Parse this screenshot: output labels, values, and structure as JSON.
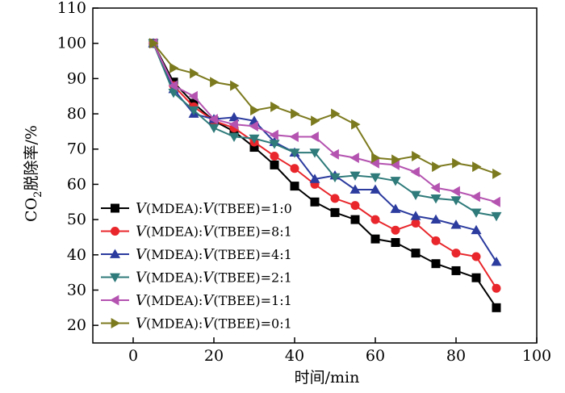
{
  "chart_data": {
    "type": "line",
    "xlabel": "时间/min",
    "ylabel_main": "CO",
    "ylabel_sub": "2",
    "ylabel_rest": "脱除率/%",
    "xlim": [
      -10,
      100
    ],
    "ylim": [
      15,
      110
    ],
    "xticks": [
      0,
      20,
      40,
      60,
      80,
      100
    ],
    "yticks": [
      20,
      30,
      40,
      50,
      60,
      70,
      80,
      90,
      100,
      110
    ],
    "xtick_labels": [
      "0",
      "20",
      "40",
      "60",
      "80",
      "100"
    ],
    "ytick_labels": [
      "20",
      "30",
      "40",
      "50",
      "60",
      "70",
      "80",
      "90",
      "100",
      "110"
    ],
    "grid": false,
    "legend_position": "bottom-left",
    "x": [
      5,
      10,
      15,
      20,
      25,
      30,
      35,
      40,
      45,
      50,
      55,
      60,
      65,
      70,
      75,
      80,
      85,
      90
    ],
    "series": [
      {
        "name": "V(MDEA):V(TBEE)=1:0",
        "legend_v1": "V",
        "legend_mid": "(MDEA):",
        "legend_v2": "V",
        "legend_end": "(TBEE)=1:0",
        "color": "#000000",
        "marker": "square",
        "values": [
          100,
          89,
          83,
          78,
          75,
          70.5,
          65.5,
          59.5,
          55,
          52,
          50,
          44.5,
          43.5,
          40.5,
          37.5,
          35.5,
          33.5,
          25
        ]
      },
      {
        "name": "V(MDEA):V(TBEE)=8:1",
        "legend_v1": "V",
        "legend_mid": "(MDEA):",
        "legend_v2": "V",
        "legend_end": "(TBEE)=8:1",
        "color": "#e8262b",
        "marker": "circle",
        "values": [
          100,
          88,
          82,
          78,
          76,
          72,
          68,
          64.5,
          60,
          56,
          54,
          50,
          47,
          49,
          44,
          40.5,
          39.5,
          30.5
        ]
      },
      {
        "name": "V(MDEA):V(TBEE)=4:1",
        "legend_v1": "V",
        "legend_mid": "(MDEA):",
        "legend_v2": "V",
        "legend_end": "(TBEE)=4:1",
        "color": "#2b3b9e",
        "marker": "triangle-up",
        "values": [
          100,
          87,
          80,
          78.5,
          79,
          78,
          72,
          69,
          61.5,
          62.5,
          58.5,
          58.5,
          53,
          51,
          50,
          48.5,
          47,
          38
        ]
      },
      {
        "name": "V(MDEA):V(TBEE)=2:1",
        "legend_v1": "V",
        "legend_mid": "(MDEA):",
        "legend_v2": "V",
        "legend_end": "(TBEE)=2:1",
        "color": "#2f7a7a",
        "marker": "triangle-down",
        "values": [
          100,
          86,
          81,
          76,
          73.5,
          73,
          71.5,
          69,
          69,
          62,
          62.5,
          62,
          61,
          57,
          56,
          55.5,
          52,
          51
        ]
      },
      {
        "name": "V(MDEA):V(TBEE)=1:1",
        "legend_v1": "V",
        "legend_mid": "(MDEA):",
        "legend_v2": "V",
        "legend_end": "(TBEE)=1:1",
        "color": "#b453b0",
        "marker": "triangle-left",
        "values": [
          100,
          88,
          85,
          78.5,
          77,
          76.5,
          74,
          73.5,
          73.5,
          68.5,
          67.5,
          66,
          65.5,
          63.5,
          59,
          58,
          56.5,
          55
        ]
      },
      {
        "name": "V(MDEA):V(TBEE)=0:1",
        "legend_v1": "V",
        "legend_mid": "(MDEA):",
        "legend_v2": "V",
        "legend_end": "(TBEE)=0:1",
        "color": "#7c7a1e",
        "marker": "triangle-right",
        "values": [
          100,
          93,
          91.5,
          89,
          88,
          81,
          82,
          80,
          78,
          80,
          77,
          67.5,
          67,
          68,
          65,
          66,
          65,
          63
        ]
      }
    ]
  }
}
